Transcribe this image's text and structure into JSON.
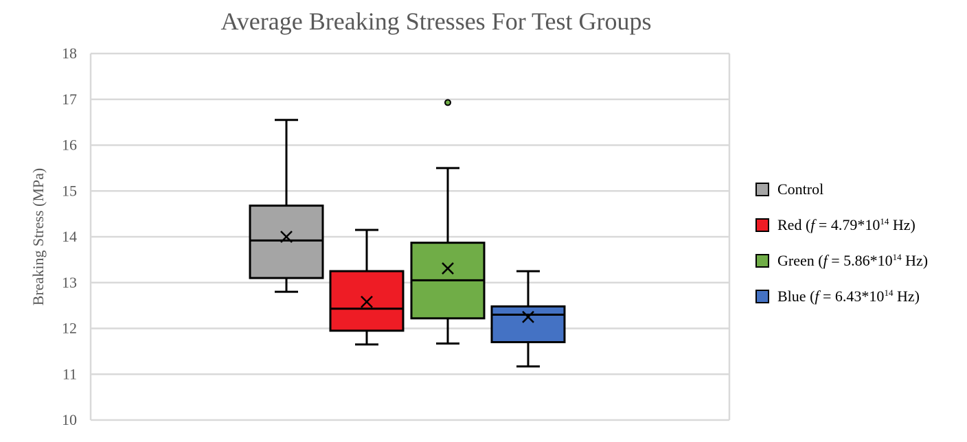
{
  "chart_data": {
    "type": "box",
    "title": "Average Breaking Stresses For Test Groups",
    "xlabel": "",
    "ylabel": "Breaking Stress (MPa)",
    "ylim": [
      10,
      18
    ],
    "yticks": [
      "10",
      "11",
      "12",
      "13",
      "14",
      "15",
      "16",
      "17",
      "18"
    ],
    "grid": true,
    "legend_position": "right",
    "series": [
      {
        "legend": {
          "name": "Control",
          "prefix": "",
          "f_value": "",
          "exponent": "",
          "unit": ""
        },
        "color": "#a5a5a5",
        "min": 12.8,
        "q1": 13.1,
        "median": 13.92,
        "q3": 14.68,
        "max": 16.55,
        "mean": 14.0,
        "outliers": []
      },
      {
        "legend": {
          "name": "Red",
          "prefix": " (",
          "f_value": " = 4.79*10",
          "exponent": "14",
          "unit": " Hz)"
        },
        "color": "#ee1c25",
        "min": 11.65,
        "q1": 11.95,
        "median": 12.43,
        "q3": 13.25,
        "max": 14.15,
        "mean": 12.58,
        "outliers": []
      },
      {
        "legend": {
          "name": "Green",
          "prefix": " (",
          "f_value": " = 5.86*10",
          "exponent": "14",
          "unit": " Hz)"
        },
        "color": "#70ad47",
        "min": 11.67,
        "q1": 12.22,
        "median": 13.05,
        "q3": 13.87,
        "max": 15.5,
        "mean": 13.31,
        "outliers": [
          16.93
        ]
      },
      {
        "legend": {
          "name": "Blue",
          "prefix": " (",
          "f_value": " = 6.43*10",
          "exponent": "14",
          "unit": " Hz)"
        },
        "color": "#4472c4",
        "min": 11.17,
        "q1": 11.7,
        "median": 12.3,
        "q3": 12.48,
        "max": 13.25,
        "mean": 12.25,
        "outliers": []
      }
    ]
  }
}
